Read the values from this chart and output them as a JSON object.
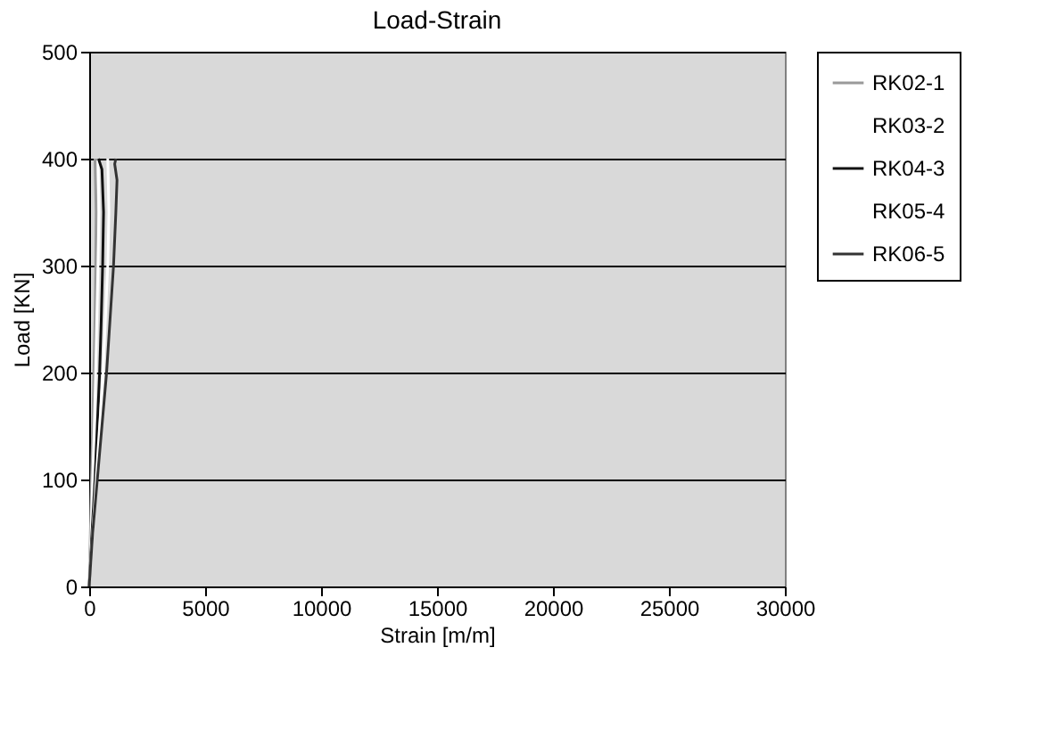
{
  "chart_data": {
    "type": "line",
    "title": "Load-Strain",
    "xlabel": "Strain [m/m]",
    "ylabel": "Load [KN]",
    "xlim": [
      0,
      30000
    ],
    "xticks": [
      0,
      5000,
      10000,
      15000,
      20000,
      25000,
      30000
    ],
    "ylim": [
      0,
      500
    ],
    "yticks": [
      0,
      100,
      200,
      300,
      400,
      500
    ],
    "grid": "y",
    "legend": "right",
    "marker": "none",
    "line_style": "solid",
    "series": [
      {
        "name": "RK02-1",
        "color": "#9a9a9a",
        "x": [
          0,
          50,
          100,
          150,
          200,
          250,
          280,
          300,
          250
        ],
        "values": [
          0,
          50,
          100,
          150,
          200,
          250,
          300,
          350,
          400
        ]
      },
      {
        "name": "RK03-2",
        "color": "#ffffff",
        "x": [
          0,
          80,
          150,
          220,
          280,
          330,
          380,
          420,
          380
        ],
        "values": [
          0,
          50,
          100,
          150,
          200,
          250,
          300,
          350,
          400
        ]
      },
      {
        "name": "RK04-3",
        "color": "#111111",
        "x": [
          0,
          120,
          250,
          350,
          450,
          520,
          580,
          620,
          550,
          400
        ],
        "values": [
          0,
          50,
          100,
          150,
          200,
          250,
          300,
          350,
          390,
          400
        ]
      },
      {
        "name": "RK05-4",
        "color": "#ffffff",
        "x": [
          0,
          150,
          300,
          450,
          600,
          700,
          800,
          850,
          800
        ],
        "values": [
          0,
          50,
          100,
          150,
          200,
          250,
          300,
          350,
          400
        ]
      },
      {
        "name": "RK06-5",
        "color": "#333333",
        "x": [
          0,
          150,
          350,
          550,
          750,
          900,
          1050,
          1150,
          1200,
          1100,
          1150
        ],
        "values": [
          0,
          50,
          100,
          150,
          200,
          250,
          300,
          350,
          380,
          395,
          400
        ]
      }
    ]
  }
}
